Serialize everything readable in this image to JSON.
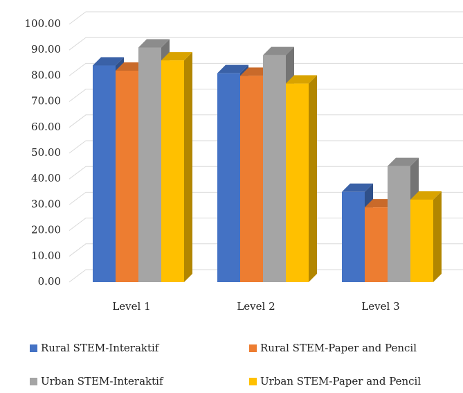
{
  "chart_data": {
    "type": "bar3d",
    "categories": [
      "Level 1",
      "Level 2",
      "Level 3"
    ],
    "series": [
      {
        "name": "Rural STEM-Interaktif",
        "color": "#4472c4",
        "values": [
          84,
          81,
          35
        ]
      },
      {
        "name": "Rural STEM-Paper and Pencil",
        "color": "#ed7d31",
        "values": [
          82,
          80,
          29
        ]
      },
      {
        "name": "Urban STEM-Interaktif",
        "color": "#a5a5a5",
        "values": [
          91,
          88,
          45
        ]
      },
      {
        "name": "Urban STEM-Paper and Pencil",
        "color": "#ffc000",
        "values": [
          86,
          77,
          32
        ]
      }
    ],
    "ylim": [
      0,
      100
    ],
    "yticks": [
      {
        "value": 0,
        "label": "0.00"
      },
      {
        "value": 10,
        "label": "10.00"
      },
      {
        "value": 20,
        "label": "20.00"
      },
      {
        "value": 30,
        "label": "30.00"
      },
      {
        "value": 40,
        "label": "40.00"
      },
      {
        "value": 50,
        "label": "50.00"
      },
      {
        "value": 60,
        "label": "60.00"
      },
      {
        "value": 70,
        "label": "70.00"
      },
      {
        "value": 80,
        "label": "80.00"
      },
      {
        "value": 90,
        "label": "90.00"
      },
      {
        "value": 100,
        "label": "100.00"
      }
    ],
    "grid": true,
    "legend": "bottom"
  }
}
